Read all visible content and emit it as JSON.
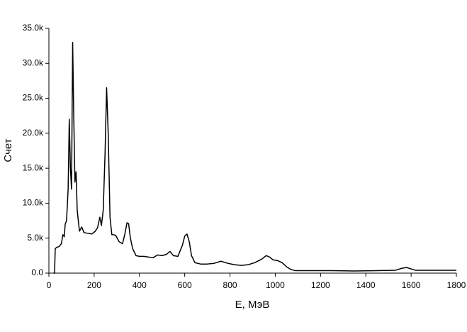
{
  "chart_data": {
    "type": "line",
    "x_label": "E, МэВ",
    "y_label": "Счет",
    "x": [
      20,
      25,
      28,
      35,
      45,
      55,
      62,
      68,
      72,
      78,
      85,
      90,
      95,
      100,
      105,
      110,
      115,
      120,
      125,
      135,
      145,
      155,
      170,
      190,
      205,
      215,
      225,
      232,
      240,
      248,
      255,
      262,
      270,
      278,
      285,
      295,
      310,
      325,
      335,
      345,
      352,
      360,
      370,
      385,
      400,
      420,
      440,
      460,
      480,
      500,
      520,
      535,
      550,
      570,
      590,
      600,
      610,
      620,
      630,
      645,
      670,
      700,
      730,
      760,
      790,
      820,
      850,
      880,
      910,
      940,
      960,
      975,
      990,
      1010,
      1030,
      1050,
      1070,
      1090,
      1150,
      1250,
      1350,
      1450,
      1530,
      1560,
      1580,
      1600,
      1620,
      1700,
      1800
    ],
    "series": [
      {
        "color": "#000000",
        "values": [
          0,
          0,
          3500,
          3700,
          3800,
          4200,
          5500,
          5200,
          7000,
          7500,
          12000,
          22000,
          15000,
          12000,
          33000,
          22000,
          13000,
          14500,
          9000,
          6000,
          6600,
          5800,
          5700,
          5600,
          6000,
          6500,
          8000,
          6800,
          9000,
          17000,
          26500,
          20000,
          8000,
          5500,
          5500,
          5400,
          4500,
          4200,
          5500,
          7200,
          7100,
          5000,
          3500,
          2500,
          2400,
          2400,
          2300,
          2200,
          2600,
          2500,
          2700,
          3100,
          2500,
          2400,
          4000,
          5300,
          5600,
          4500,
          2500,
          1500,
          1300,
          1300,
          1400,
          1700,
          1400,
          1200,
          1100,
          1200,
          1500,
          2000,
          2500,
          2300,
          1900,
          1800,
          1500,
          900,
          500,
          350,
          350,
          350,
          300,
          350,
          400,
          700,
          800,
          600,
          400,
          400,
          400
        ]
      }
    ],
    "xlim": [
      0,
      1800
    ],
    "xticks": [
      0,
      200,
      400,
      600,
      800,
      1000,
      1200,
      1400,
      1600,
      1800
    ],
    "ylim": [
      0,
      35000
    ],
    "yticks": [
      {
        "value": 0,
        "label": "0.0"
      },
      {
        "value": 5000,
        "label": "5.0k"
      },
      {
        "value": 10000,
        "label": "10.0k"
      },
      {
        "value": 15000,
        "label": "15.0k"
      },
      {
        "value": 20000,
        "label": "20.0k"
      },
      {
        "value": 25000,
        "label": "25.0k"
      },
      {
        "value": 30000,
        "label": "30.0k"
      },
      {
        "value": 35000,
        "label": "35.0k"
      }
    ],
    "grid": false
  }
}
